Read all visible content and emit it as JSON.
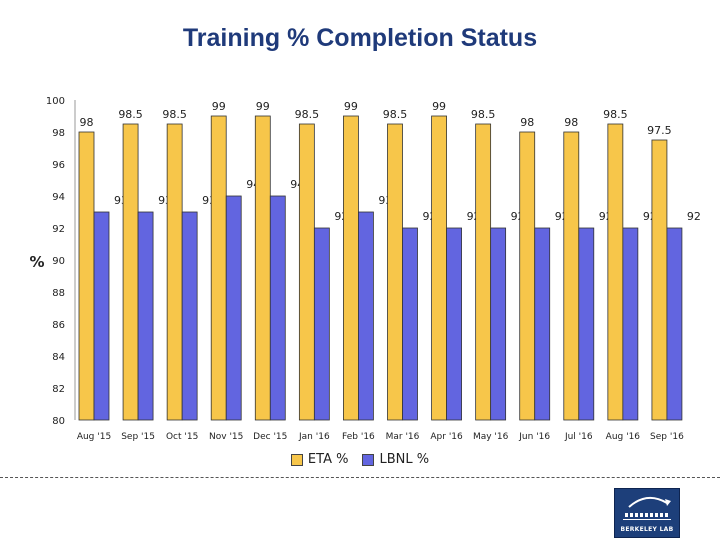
{
  "chart_data": {
    "type": "bar",
    "title": "Training % Completion Status",
    "xlabel": "",
    "ylabel": "%",
    "ylim": [
      80,
      100
    ],
    "yticks": [
      80,
      82,
      84,
      86,
      88,
      90,
      92,
      94,
      96,
      98,
      100
    ],
    "categories": [
      "Aug '15",
      "Sep '15",
      "Oct '15",
      "Nov '15",
      "Dec '15",
      "Jan '16",
      "Feb '16",
      "Mar '16",
      "Apr '16",
      "May '16",
      "Jun '16",
      "Jul '16",
      "Aug '16",
      "Sep '16"
    ],
    "series": [
      {
        "name": "ETA %",
        "color": "#f7c64a",
        "values": [
          98,
          98.5,
          98.5,
          99,
          99,
          98.5,
          99,
          98.5,
          99,
          98.5,
          98,
          98,
          98.5,
          97.5
        ]
      },
      {
        "name": "LBNL %",
        "color": "#6265e0",
        "values": [
          93,
          93,
          93,
          94,
          94,
          92,
          93,
          92,
          92,
          92,
          92,
          92,
          92,
          92
        ]
      }
    ],
    "legend_position": "bottom"
  },
  "logo": {
    "text": "BERKELEY LAB"
  }
}
